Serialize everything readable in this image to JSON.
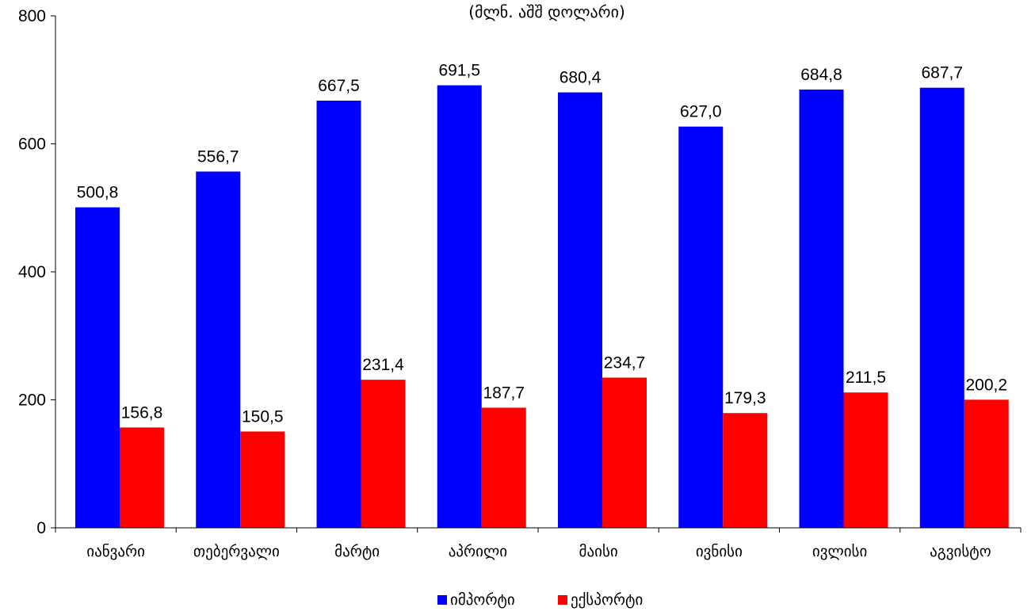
{
  "chart_data": {
    "type": "bar",
    "title": "",
    "subtitle": "(მლნ. აშშ დოლარი)",
    "xlabel": "",
    "ylabel": "",
    "ylim": [
      0,
      800
    ],
    "yticks": [
      0,
      200,
      400,
      600,
      800
    ],
    "grid": false,
    "legend_position": "bottom",
    "categories": [
      "იანვარი",
      "თებერვალი",
      "მარტი",
      "აპრილი",
      "მაისი",
      "ივნისი",
      "ივლისი",
      "აგვისტო"
    ],
    "series": [
      {
        "name": "იმპორტი",
        "color": "#0000FF",
        "values": [
          500.8,
          556.7,
          667.5,
          691.5,
          680.4,
          627.0,
          684.8,
          687.7
        ],
        "labels": [
          "500,8",
          "556,7",
          "667,5",
          "691,5",
          "680,4",
          "627,0",
          "684,8",
          "687,7"
        ]
      },
      {
        "name": "ექსპორტი",
        "color": "#FF0000",
        "values": [
          156.8,
          150.5,
          231.4,
          187.7,
          234.7,
          179.3,
          211.5,
          200.2
        ],
        "labels": [
          "156,8",
          "150,5",
          "231,4",
          "187,7",
          "234,7",
          "179,3",
          "211,5",
          "200,2"
        ]
      }
    ]
  }
}
